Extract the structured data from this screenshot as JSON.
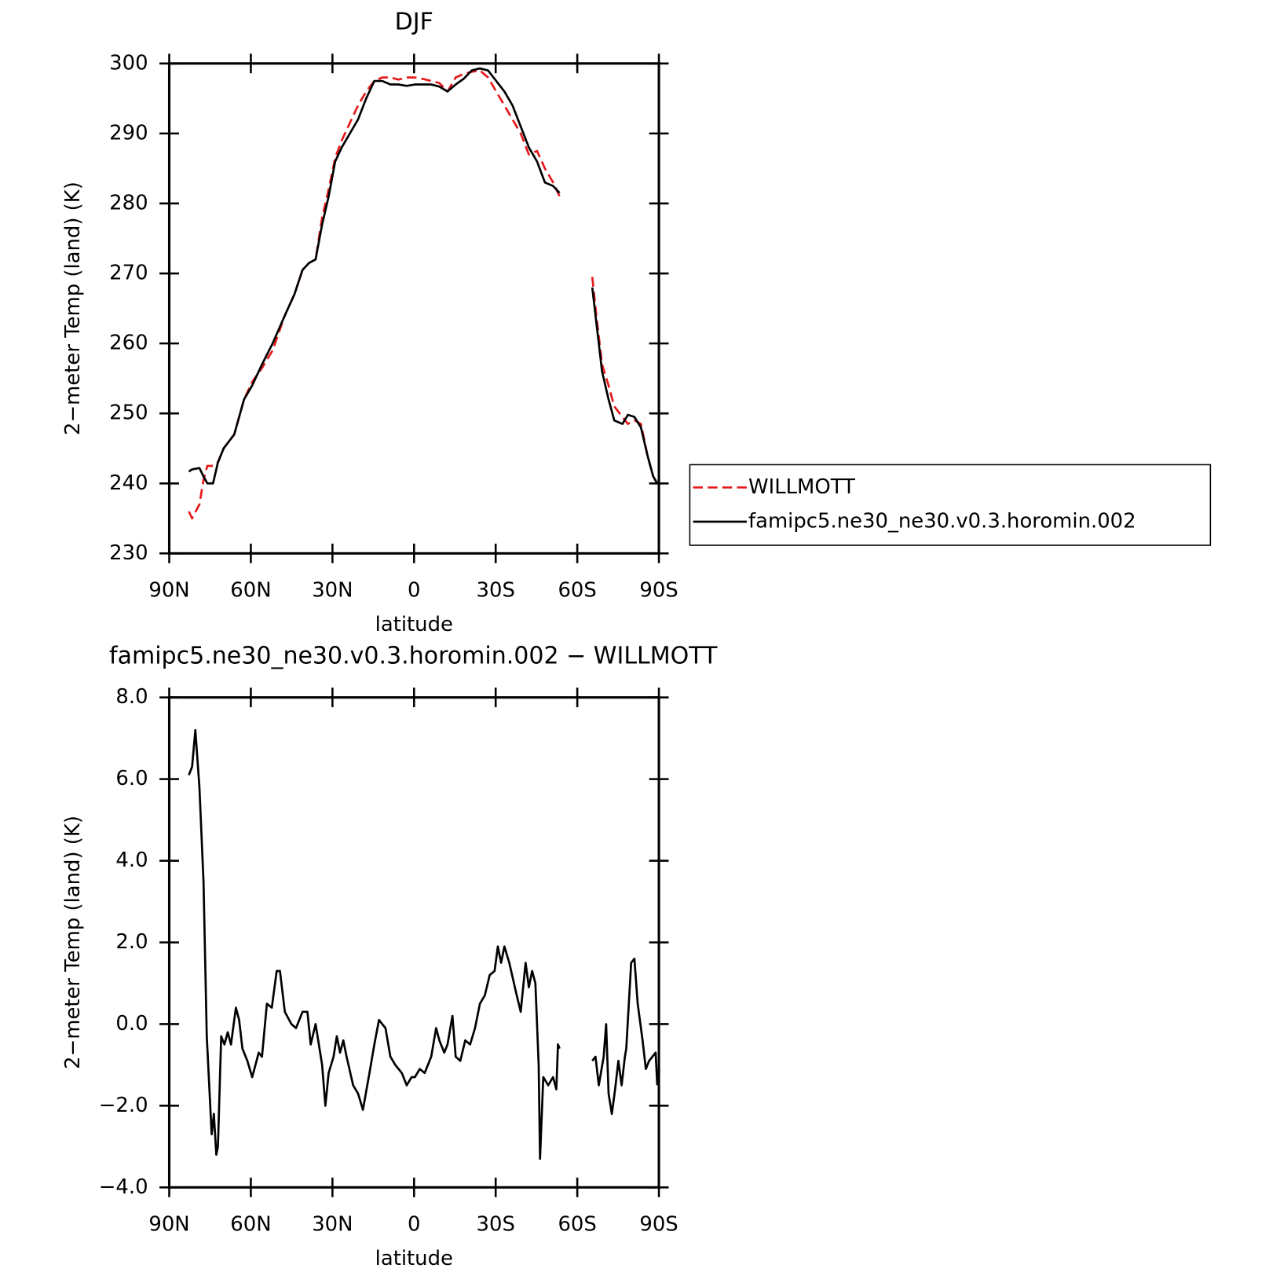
{
  "chart_data": [
    {
      "type": "line",
      "title": "DJF",
      "x_label": "latitude",
      "y_label": "2−meter Temp (land) (K)",
      "x": [
        82.8,
        81.6,
        78.9,
        77.4,
        76.0,
        73.9,
        72.1,
        70.0,
        66.1,
        62.5,
        59.5,
        55.9,
        52.0,
        47.5,
        44.0,
        41.0,
        38.6,
        36.2,
        33.8,
        31.4,
        29.0,
        26.6,
        23.6,
        20.6,
        17.6,
        14.6,
        11.7,
        8.7,
        5.7,
        2.7,
        -0.3,
        -3.3,
        -6.3,
        -9.3,
        -12.3,
        -15.3,
        -18.2,
        -21.2,
        -24.2,
        -27.2,
        -30.2,
        -33.2,
        -36.2,
        -39.2,
        -42.2,
        -45.2,
        -48.1,
        -51.1,
        -53.5,
        -60,
        -65.5,
        -67.0,
        -69.1,
        -71.5,
        -73.6,
        -76.6,
        -78.6,
        -81.0,
        -83.4,
        -85.8,
        -87.9,
        -89.4
      ],
      "series": [
        {
          "name": "WILLMOTT",
          "color": "#e41a1c",
          "dashed": true,
          "values": [
            236,
            235,
            237,
            240.5,
            242.5,
            242.5,
            243,
            245,
            247,
            252,
            254.5,
            256.5,
            259,
            264,
            267,
            270.5,
            271.5,
            272,
            278,
            282,
            286.5,
            289,
            291.5,
            294,
            296,
            297.5,
            298,
            298,
            297.7,
            298,
            298,
            297.8,
            297.5,
            297.2,
            296,
            298,
            298.5,
            298.8,
            299,
            298,
            296,
            294,
            292,
            290,
            287,
            287.5,
            285,
            283,
            281,
            null,
            269.5,
            264,
            257,
            254,
            251,
            249.5,
            248.5,
            249,
            248.5,
            244,
            241,
            240
          ]
        },
        {
          "name": "famipc5.ne30_ne30.v0.3.horomin.002",
          "color": "#000000",
          "dashed": false,
          "values": [
            241.7,
            242,
            242.2,
            241,
            240,
            240,
            243,
            245,
            247,
            252,
            254,
            257,
            260,
            264,
            267,
            270.5,
            271.5,
            272,
            277,
            281,
            286,
            288,
            290,
            292,
            295,
            297.5,
            297.5,
            297,
            297,
            296.8,
            297,
            297,
            297,
            296.7,
            296,
            297,
            297.8,
            299,
            299.3,
            299,
            297.5,
            296,
            294,
            291,
            288,
            286,
            283,
            282.5,
            281.5,
            null,
            268,
            263,
            256,
            252,
            249,
            248.5,
            249.8,
            249.5,
            248,
            244,
            241,
            240
          ]
        }
      ],
      "xlim": [
        90,
        -90
      ],
      "xticks": [
        {
          "value": 90,
          "label": "90N"
        },
        {
          "value": 60,
          "label": "60N"
        },
        {
          "value": 30,
          "label": "30N"
        },
        0,
        {
          "value": -30,
          "label": "30S"
        },
        {
          "value": -60,
          "label": "60S"
        },
        {
          "value": -90,
          "label": "90S"
        }
      ],
      "ylim": [
        230,
        300
      ],
      "yticks": [
        230,
        240,
        250,
        260,
        270,
        280,
        290,
        300
      ],
      "legend": "right"
    },
    {
      "type": "line",
      "title": "famipc5.ne30_ne30.v0.3.horomin.002 − WILLMOTT",
      "x_label": "latitude",
      "y_label": "2−meter Temp (land) (K)",
      "x": [
        82.8,
        81.6,
        80.4,
        78.9,
        77.4,
        76.2,
        74.4,
        73.6,
        72.7,
        72.1,
        70.9,
        69.7,
        68.5,
        67.3,
        65.5,
        64.3,
        63.1,
        61.3,
        59.5,
        57.1,
        55.9,
        54.1,
        52.3,
        50.5,
        49.3,
        47.5,
        45.1,
        43.4,
        41.0,
        39.2,
        38.0,
        36.2,
        33.8,
        32.6,
        31.4,
        29.6,
        28.4,
        27.2,
        26.0,
        24.8,
        22.4,
        20.6,
        18.8,
        16.4,
        14.6,
        12.9,
        10.5,
        8.7,
        6.9,
        4.5,
        2.7,
        0.9,
        -0.3,
        -2.1,
        -3.9,
        -6.3,
        -8.1,
        -9.3,
        -11.1,
        -12.3,
        -14.1,
        -15.3,
        -17.0,
        -18.8,
        -20.6,
        -22.4,
        -24.2,
        -26.0,
        -27.8,
        -29.6,
        -30.8,
        -32.0,
        -33.2,
        -35.0,
        -37.4,
        -39.2,
        -41.0,
        -42.2,
        -43.4,
        -44.6,
        -45.8,
        -46.3,
        -47.5,
        -49.3,
        -51.1,
        -52.3,
        -52.9,
        -53.5,
        -60,
        -65.5,
        -66.7,
        -67.9,
        -69.7,
        -70.6,
        -71.5,
        -72.7,
        -73.9,
        -75.1,
        -76.3,
        -77.5,
        -78.0,
        -79.8,
        -81.0,
        -82.2,
        -84.0,
        -85.2,
        -86.4,
        -87.6,
        -88.8,
        -89.4
      ],
      "series": [
        {
          "color": "#000000",
          "dashed": false,
          "values": [
            6.1,
            6.3,
            7.2,
            5.8,
            3.5,
            -0.3,
            -2.7,
            -2.2,
            -3.2,
            -3.0,
            -0.3,
            -0.5,
            -0.2,
            -0.5,
            0.4,
            0.1,
            -0.6,
            -0.9,
            -1.3,
            -0.7,
            -0.8,
            0.5,
            0.4,
            1.3,
            1.3,
            0.3,
            0.0,
            -0.1,
            0.3,
            0.3,
            -0.5,
            0.0,
            -1.0,
            -2.0,
            -1.2,
            -0.8,
            -0.3,
            -0.7,
            -0.4,
            -0.8,
            -1.5,
            -1.7,
            -2.1,
            -1.2,
            -0.5,
            0.1,
            -0.1,
            -0.8,
            -1.0,
            -1.2,
            -1.5,
            -1.3,
            -1.3,
            -1.1,
            -1.2,
            -0.8,
            -0.1,
            -0.4,
            -0.7,
            -0.5,
            0.2,
            -0.8,
            -0.9,
            -0.4,
            -0.5,
            -0.1,
            0.5,
            0.7,
            1.2,
            1.3,
            1.9,
            1.5,
            1.9,
            1.5,
            0.8,
            0.3,
            1.5,
            0.9,
            1.3,
            1.0,
            -1.0,
            -3.3,
            -1.3,
            -1.5,
            -1.3,
            -1.6,
            -0.5,
            -0.6,
            null,
            -0.9,
            -0.8,
            -1.5,
            -0.8,
            0.0,
            -1.7,
            -2.2,
            -1.6,
            -0.9,
            -1.5,
            -0.8,
            -0.6,
            1.5,
            1.6,
            0.5,
            -0.4,
            -1.1,
            -0.9,
            -0.8,
            -0.7,
            -1.5
          ]
        }
      ],
      "xlim": [
        90,
        -90
      ],
      "xticks": [
        {
          "value": 90,
          "label": "90N"
        },
        {
          "value": 60,
          "label": "60N"
        },
        {
          "value": 30,
          "label": "30N"
        },
        0,
        {
          "value": -30,
          "label": "30S"
        },
        {
          "value": -60,
          "label": "60S"
        },
        {
          "value": -90,
          "label": "90S"
        }
      ],
      "ylim": [
        -4,
        8
      ],
      "yticks": [
        {
          "value": -4,
          "label": "−4.0"
        },
        {
          "value": -2,
          "label": "−2.0"
        },
        {
          "value": 0,
          "label": "0.0"
        },
        {
          "value": 2,
          "label": "2.0"
        },
        {
          "value": 4,
          "label": "4.0"
        },
        {
          "value": 6,
          "label": "6.0"
        },
        {
          "value": 8,
          "label": "8.0"
        }
      ]
    }
  ]
}
